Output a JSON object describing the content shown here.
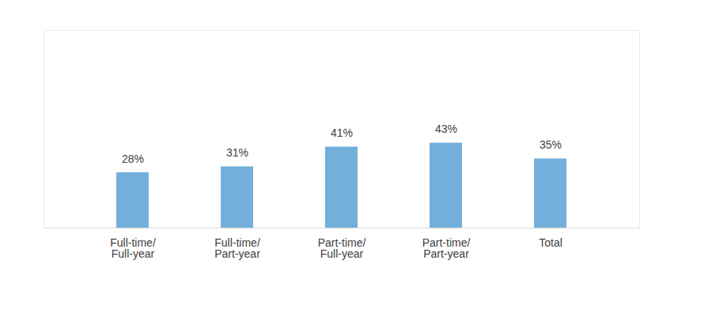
{
  "chart_data": {
    "type": "bar",
    "categories": [
      "Full-time/\nFull-year",
      "Full-time/\nPart-year",
      "Part-time/\nFull-year",
      "Part-time/\nPart-year",
      "Total"
    ],
    "values": [
      28,
      31,
      41,
      43,
      35
    ],
    "value_labels": [
      "28%",
      "31%",
      "41%",
      "43%",
      "35%"
    ],
    "color": "#74afdb",
    "ylim": [
      0,
      100
    ],
    "data_labels": true,
    "tick_labels": "x",
    "grid": false
  }
}
